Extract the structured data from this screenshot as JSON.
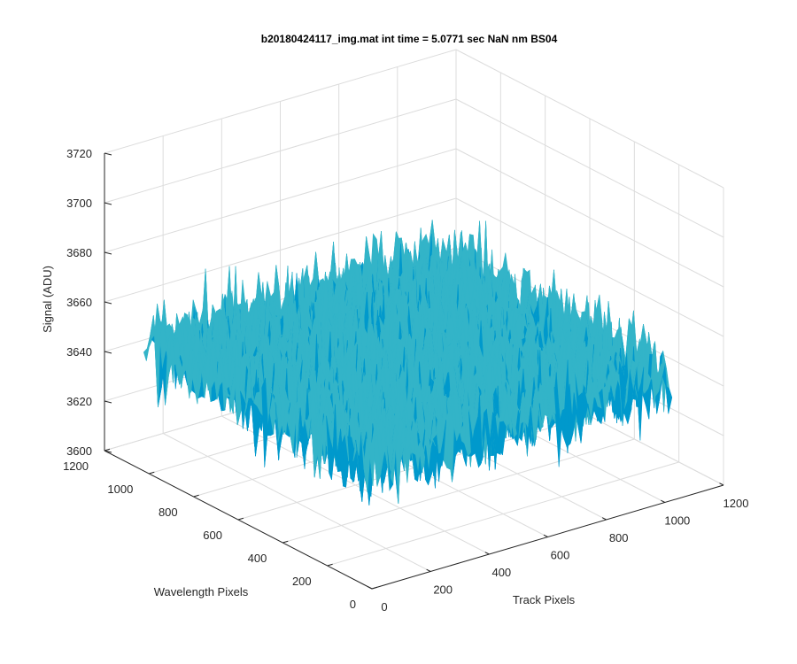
{
  "chart_data": {
    "type": "surface3d",
    "title": "b20180424117_img.mat int time = 5.0771 sec  NaN nm BS04",
    "xlabel": "Track Pixels",
    "ylabel": "Wavelength Pixels",
    "zlabel": "Signal (ADU)",
    "xlim": [
      0,
      1200
    ],
    "ylim": [
      0,
      1200
    ],
    "zlim": [
      3600,
      3720
    ],
    "x_ticks": [
      "0",
      "200",
      "400",
      "600",
      "800",
      "1000",
      "1200"
    ],
    "y_ticks": [
      "0",
      "200",
      "400",
      "600",
      "800",
      "1000",
      "1200"
    ],
    "z_ticks": [
      "3600",
      "3620",
      "3640",
      "3660",
      "3680",
      "3700",
      "3720"
    ],
    "grid": true,
    "data_extent": {
      "x": [
        0,
        1024
      ],
      "y": [
        0,
        1024
      ]
    },
    "signal_mean": 3650,
    "signal_range_approx": [
      3610,
      3705
    ],
    "colormap": [
      "#0072bd",
      "#0099cc",
      "#33b4c8",
      "#6cc08a",
      "#edb120"
    ]
  }
}
